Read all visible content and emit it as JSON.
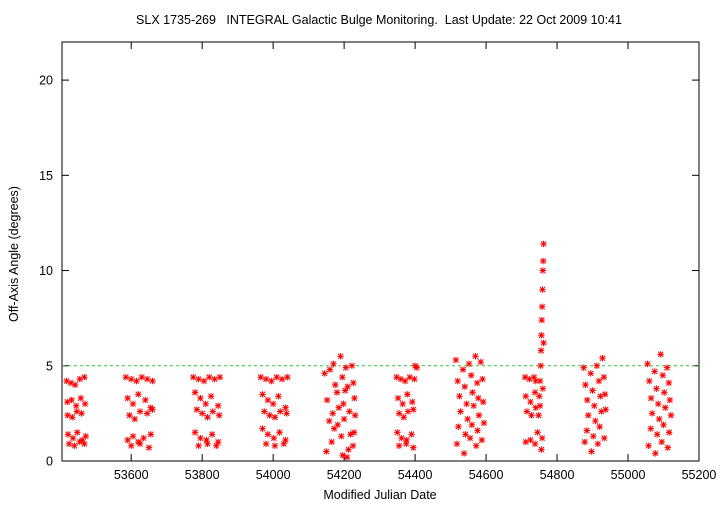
{
  "chart_data": {
    "type": "scatter",
    "title": "SLX 1735-269   INTEGRAL Galactic Bulge Monitoring.  Last Update: 22 Oct 2009 10:41",
    "xlabel": "Modified Julian Date",
    "ylabel": "Off-Axis Angle (degrees)",
    "xlim": [
      53405,
      55200
    ],
    "ylim": [
      0,
      22
    ],
    "x_ticks": [
      53600,
      53800,
      54000,
      54200,
      54400,
      54600,
      54800,
      55000,
      55200
    ],
    "y_ticks": [
      0,
      5,
      10,
      15,
      20
    ],
    "grid": false,
    "legend": "none",
    "reference_line": {
      "y": 5,
      "color": "#2ec82e",
      "style": "dashed"
    },
    "marker": "asterisk",
    "series": [
      {
        "color": "#ff0000",
        "points": [
          [
            53418,
            4.2
          ],
          [
            53430,
            4.1
          ],
          [
            53442,
            4.0
          ],
          [
            53455,
            4.3
          ],
          [
            53468,
            4.4
          ],
          [
            53420,
            3.1
          ],
          [
            53432,
            3.2
          ],
          [
            53445,
            2.9
          ],
          [
            53458,
            3.3
          ],
          [
            53470,
            3.0
          ],
          [
            53421,
            2.4
          ],
          [
            53434,
            2.3
          ],
          [
            53447,
            2.6
          ],
          [
            53460,
            2.5
          ],
          [
            53422,
            1.4
          ],
          [
            53436,
            1.2
          ],
          [
            53448,
            1.5
          ],
          [
            53462,
            1.1
          ],
          [
            53472,
            1.3
          ],
          [
            53425,
            0.9
          ],
          [
            53440,
            0.8
          ],
          [
            53455,
            1.0
          ],
          [
            53468,
            0.9
          ],
          [
            53585,
            4.4
          ],
          [
            53600,
            4.3
          ],
          [
            53615,
            4.2
          ],
          [
            53630,
            4.4
          ],
          [
            53645,
            4.3
          ],
          [
            53660,
            4.2
          ],
          [
            53590,
            3.3
          ],
          [
            53605,
            3.0
          ],
          [
            53620,
            3.5
          ],
          [
            53640,
            3.2
          ],
          [
            53655,
            2.8
          ],
          [
            53595,
            2.4
          ],
          [
            53610,
            2.2
          ],
          [
            53625,
            2.6
          ],
          [
            53645,
            2.5
          ],
          [
            53660,
            2.7
          ],
          [
            53590,
            1.1
          ],
          [
            53605,
            1.3
          ],
          [
            53620,
            1.0
          ],
          [
            53635,
            1.2
          ],
          [
            53655,
            1.4
          ],
          [
            53600,
            0.8
          ],
          [
            53625,
            0.9
          ],
          [
            53650,
            0.7
          ],
          [
            53775,
            4.4
          ],
          [
            53790,
            4.3
          ],
          [
            53805,
            4.2
          ],
          [
            53820,
            4.4
          ],
          [
            53835,
            4.3
          ],
          [
            53850,
            4.4
          ],
          [
            53780,
            3.6
          ],
          [
            53795,
            3.3
          ],
          [
            53810,
            3.0
          ],
          [
            53825,
            3.4
          ],
          [
            53845,
            2.9
          ],
          [
            53785,
            2.7
          ],
          [
            53800,
            2.5
          ],
          [
            53815,
            2.3
          ],
          [
            53830,
            2.6
          ],
          [
            53848,
            2.4
          ],
          [
            53780,
            1.5
          ],
          [
            53795,
            1.2
          ],
          [
            53812,
            1.1
          ],
          [
            53828,
            1.4
          ],
          [
            53845,
            1.0
          ],
          [
            53790,
            0.8
          ],
          [
            53815,
            0.9
          ],
          [
            53840,
            0.8
          ],
          [
            53965,
            4.4
          ],
          [
            53980,
            4.3
          ],
          [
            53995,
            4.2
          ],
          [
            54010,
            4.4
          ],
          [
            54025,
            4.3
          ],
          [
            54040,
            4.4
          ],
          [
            53970,
            3.5
          ],
          [
            53985,
            3.2
          ],
          [
            54000,
            3.0
          ],
          [
            54015,
            3.4
          ],
          [
            54035,
            2.8
          ],
          [
            53975,
            2.6
          ],
          [
            53990,
            2.4
          ],
          [
            54005,
            2.3
          ],
          [
            54020,
            2.6
          ],
          [
            54038,
            2.5
          ],
          [
            53970,
            1.7
          ],
          [
            53985,
            1.4
          ],
          [
            54002,
            1.2
          ],
          [
            54018,
            1.5
          ],
          [
            54035,
            1.1
          ],
          [
            53980,
            0.9
          ],
          [
            54005,
            0.8
          ],
          [
            54030,
            0.9
          ],
          [
            54145,
            4.6
          ],
          [
            54152,
            3.2
          ],
          [
            54158,
            2.1
          ],
          [
            54165,
            1.0
          ],
          [
            54150,
            0.5
          ],
          [
            54170,
            5.1
          ],
          [
            54175,
            4.0
          ],
          [
            54180,
            3.6
          ],
          [
            54185,
            2.8
          ],
          [
            54172,
            1.7
          ],
          [
            54190,
            5.5
          ],
          [
            54195,
            4.4
          ],
          [
            54198,
            3.0
          ],
          [
            54200,
            2.2
          ],
          [
            54192,
            1.3
          ],
          [
            54196,
            0.3
          ],
          [
            54205,
            4.9
          ],
          [
            54210,
            3.9
          ],
          [
            54215,
            2.6
          ],
          [
            54218,
            1.4
          ],
          [
            54212,
            0.6
          ],
          [
            54222,
            5.0
          ],
          [
            54226,
            4.1
          ],
          [
            54229,
            3.3
          ],
          [
            54231,
            2.4
          ],
          [
            54228,
            1.5
          ],
          [
            54225,
            0.8
          ],
          [
            54160,
            4.8
          ],
          [
            54168,
            2.5
          ],
          [
            54182,
            1.9
          ],
          [
            54203,
            3.7
          ],
          [
            54208,
            0.2
          ],
          [
            54348,
            4.4
          ],
          [
            54360,
            4.3
          ],
          [
            54372,
            4.2
          ],
          [
            54385,
            4.4
          ],
          [
            54398,
            4.3
          ],
          [
            54352,
            3.3
          ],
          [
            54365,
            3.0
          ],
          [
            54378,
            3.5
          ],
          [
            54392,
            3.1
          ],
          [
            54355,
            2.5
          ],
          [
            54368,
            2.3
          ],
          [
            54380,
            2.6
          ],
          [
            54395,
            2.7
          ],
          [
            54350,
            1.5
          ],
          [
            54362,
            1.2
          ],
          [
            54376,
            1.1
          ],
          [
            54390,
            1.4
          ],
          [
            54355,
            0.8
          ],
          [
            54375,
            0.9
          ],
          [
            54395,
            0.7
          ],
          [
            54400,
            5.0
          ],
          [
            54405,
            4.9
          ],
          [
            54515,
            5.3
          ],
          [
            54520,
            4.2
          ],
          [
            54525,
            3.4
          ],
          [
            54528,
            2.6
          ],
          [
            54522,
            1.8
          ],
          [
            54518,
            0.9
          ],
          [
            54535,
            4.8
          ],
          [
            54540,
            3.9
          ],
          [
            54545,
            3.0
          ],
          [
            54548,
            2.2
          ],
          [
            54542,
            1.4
          ],
          [
            54538,
            0.4
          ],
          [
            54552,
            5.1
          ],
          [
            54558,
            4.5
          ],
          [
            54562,
            3.6
          ],
          [
            54565,
            2.9
          ],
          [
            54560,
            1.9
          ],
          [
            54555,
            1.2
          ],
          [
            54570,
            5.5
          ],
          [
            54575,
            4.1
          ],
          [
            54578,
            3.3
          ],
          [
            54580,
            2.4
          ],
          [
            54576,
            1.6
          ],
          [
            54572,
            0.8
          ],
          [
            54585,
            5.2
          ],
          [
            54590,
            4.3
          ],
          [
            54592,
            3.1
          ],
          [
            54594,
            2.0
          ],
          [
            54588,
            1.1
          ],
          [
            54710,
            4.4
          ],
          [
            54722,
            4.3
          ],
          [
            54735,
            4.4
          ],
          [
            54740,
            4.2
          ],
          [
            54712,
            3.4
          ],
          [
            54725,
            3.1
          ],
          [
            54738,
            3.6
          ],
          [
            54715,
            2.6
          ],
          [
            54728,
            2.4
          ],
          [
            54740,
            2.8
          ],
          [
            54712,
            1.0
          ],
          [
            54725,
            1.1
          ],
          [
            54738,
            0.9
          ],
          [
            54745,
            1.5
          ],
          [
            54748,
            2.4
          ],
          [
            54750,
            3.4
          ],
          [
            54752,
            4.2
          ],
          [
            54754,
            5.0
          ],
          [
            54755,
            5.8
          ],
          [
            54756,
            6.6
          ],
          [
            54757,
            7.4
          ],
          [
            54758,
            8.1
          ],
          [
            54759,
            9.0
          ],
          [
            54760,
            10.0
          ],
          [
            54761,
            10.5
          ],
          [
            54762,
            11.4
          ],
          [
            54756,
            0.6
          ],
          [
            54758,
            1.2
          ],
          [
            54752,
            2.9
          ],
          [
            54760,
            3.8
          ],
          [
            54762,
            6.2
          ],
          [
            54875,
            4.9
          ],
          [
            54880,
            4.0
          ],
          [
            54885,
            3.2
          ],
          [
            54888,
            2.4
          ],
          [
            54884,
            1.6
          ],
          [
            54878,
            1.0
          ],
          [
            54895,
            4.6
          ],
          [
            54900,
            3.7
          ],
          [
            54905,
            2.9
          ],
          [
            54908,
            2.1
          ],
          [
            54902,
            1.3
          ],
          [
            54897,
            0.5
          ],
          [
            54912,
            5.0
          ],
          [
            54918,
            4.2
          ],
          [
            54922,
            3.4
          ],
          [
            54925,
            2.6
          ],
          [
            54920,
            1.8
          ],
          [
            54915,
            0.9
          ],
          [
            54928,
            5.4
          ],
          [
            54932,
            4.4
          ],
          [
            54935,
            3.5
          ],
          [
            54937,
            2.7
          ],
          [
            54933,
            1.2
          ],
          [
            55055,
            5.1
          ],
          [
            55060,
            4.2
          ],
          [
            55065,
            3.3
          ],
          [
            55068,
            2.5
          ],
          [
            55064,
            1.7
          ],
          [
            55058,
            0.8
          ],
          [
            55075,
            4.7
          ],
          [
            55080,
            3.8
          ],
          [
            55085,
            3.0
          ],
          [
            55088,
            2.2
          ],
          [
            55082,
            1.4
          ],
          [
            55077,
            0.4
          ],
          [
            55092,
            5.6
          ],
          [
            55098,
            4.5
          ],
          [
            55102,
            3.6
          ],
          [
            55105,
            2.8
          ],
          [
            55100,
            1.9
          ],
          [
            55095,
            1.0
          ],
          [
            55110,
            4.9
          ],
          [
            55115,
            4.1
          ],
          [
            55118,
            3.2
          ],
          [
            55121,
            2.4
          ],
          [
            55116,
            1.5
          ],
          [
            55112,
            0.7
          ]
        ]
      }
    ]
  }
}
